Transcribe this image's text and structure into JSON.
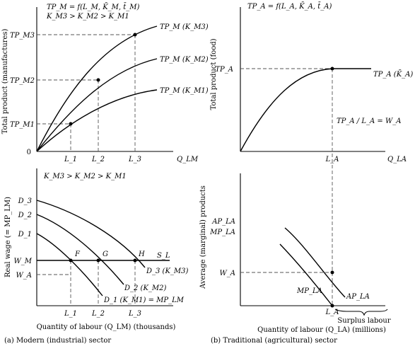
{
  "panel_a": {
    "top_eq_1": "TP_M = f(L_M, K̄_M, t̄_M)",
    "top_eq_2": "K_M3 > K_M2 > K_M1",
    "y_axis": "Total product (manufactures)",
    "tp_labels": [
      "TP_M3",
      "TP_M2",
      "TP_M1"
    ],
    "curve_labels": [
      "TP_M (K_M3)",
      "TP_M (K_M2)",
      "TP_M (K_M1)"
    ],
    "origin": "0",
    "x_ticks": [
      "L_1",
      "L_2",
      "L_3"
    ],
    "x_axis_end": "Q_LM",
    "bottom_eq": "K_M3 > K_M2 > K_M1",
    "bottom_y_axis": "Real wage (= MP_LM)",
    "d_labels": [
      "D_3",
      "D_2",
      "D_1"
    ],
    "w_labels": [
      "W_M",
      "W_A"
    ],
    "points": [
      "F",
      "G",
      "H"
    ],
    "supply": "S_L",
    "demand_labels": [
      "D_3 (K_M3)",
      "D_2 (K_M2)",
      "D_1 (K_M1) = MP_LM"
    ],
    "x_title": "Quantity of labour (Q_LM) (thousands)",
    "caption": "(a) Modern (industrial) sector"
  },
  "panel_b": {
    "top_eq": "TP_A = f(L_A, K̄_A, t̄_A)",
    "y_axis": "Total product (food)",
    "tp_label": "TP_A",
    "curve_label": "TP_A (K̄_A)",
    "ratio": "TP_A / L_A = W_A",
    "x_ticks": [
      "L_A",
      "Q_LA"
    ],
    "bottom_y_axis": "Average (marginal) products",
    "ap_label": "AP_LA",
    "mp_label": "MP_LA",
    "w_label": "W_A",
    "bottom_x_tick": "L_A",
    "surplus": "Surplus labour",
    "x_title": "Quantity of labour (Q_LA) (millions)",
    "caption": "(b) Traditional (agricultural) sector"
  }
}
